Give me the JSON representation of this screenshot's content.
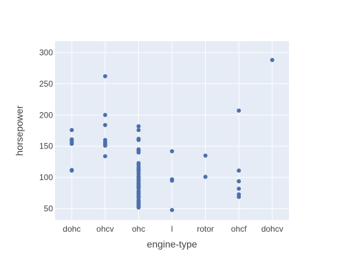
{
  "chart_data": {
    "type": "scatter",
    "xlabel": "engine-type",
    "ylabel": "horsepower",
    "categories": [
      "dohc",
      "ohcv",
      "ohc",
      "l",
      "rotor",
      "ohcf",
      "dohcv"
    ],
    "ylim": [
      32,
      318
    ],
    "yticks": [
      50,
      100,
      150,
      200,
      250,
      300
    ],
    "grid": true,
    "colors": {
      "marker": "#4c6fae",
      "plot_background": "#e5ecf6",
      "grid": "#ffffff",
      "text": "#444444"
    },
    "series": [
      {
        "points": [
          {
            "x": "dohc",
            "y": 111
          },
          {
            "x": "dohc",
            "y": 112
          },
          {
            "x": "dohc",
            "y": 154
          },
          {
            "x": "dohc",
            "y": 157
          },
          {
            "x": "dohc",
            "y": 160
          },
          {
            "x": "dohc",
            "y": 161
          },
          {
            "x": "dohc",
            "y": 176
          },
          {
            "x": "ohcv",
            "y": 134
          },
          {
            "x": "ohcv",
            "y": 151
          },
          {
            "x": "ohcv",
            "y": 152
          },
          {
            "x": "ohcv",
            "y": 155
          },
          {
            "x": "ohcv",
            "y": 156
          },
          {
            "x": "ohcv",
            "y": 160
          },
          {
            "x": "ohcv",
            "y": 184
          },
          {
            "x": "ohcv",
            "y": 200
          },
          {
            "x": "ohcv",
            "y": 262
          },
          {
            "x": "ohc",
            "y": 52
          },
          {
            "x": "ohc",
            "y": 55
          },
          {
            "x": "ohc",
            "y": 56
          },
          {
            "x": "ohc",
            "y": 58
          },
          {
            "x": "ohc",
            "y": 60
          },
          {
            "x": "ohc",
            "y": 62
          },
          {
            "x": "ohc",
            "y": 64
          },
          {
            "x": "ohc",
            "y": 68
          },
          {
            "x": "ohc",
            "y": 69
          },
          {
            "x": "ohc",
            "y": 70
          },
          {
            "x": "ohc",
            "y": 73
          },
          {
            "x": "ohc",
            "y": 76
          },
          {
            "x": "ohc",
            "y": 78
          },
          {
            "x": "ohc",
            "y": 82
          },
          {
            "x": "ohc",
            "y": 84
          },
          {
            "x": "ohc",
            "y": 85
          },
          {
            "x": "ohc",
            "y": 86
          },
          {
            "x": "ohc",
            "y": 88
          },
          {
            "x": "ohc",
            "y": 90
          },
          {
            "x": "ohc",
            "y": 92
          },
          {
            "x": "ohc",
            "y": 95
          },
          {
            "x": "ohc",
            "y": 97
          },
          {
            "x": "ohc",
            "y": 100
          },
          {
            "x": "ohc",
            "y": 101
          },
          {
            "x": "ohc",
            "y": 102
          },
          {
            "x": "ohc",
            "y": 106
          },
          {
            "x": "ohc",
            "y": 110
          },
          {
            "x": "ohc",
            "y": 112
          },
          {
            "x": "ohc",
            "y": 114
          },
          {
            "x": "ohc",
            "y": 116
          },
          {
            "x": "ohc",
            "y": 120
          },
          {
            "x": "ohc",
            "y": 123
          },
          {
            "x": "ohc",
            "y": 140
          },
          {
            "x": "ohc",
            "y": 143
          },
          {
            "x": "ohc",
            "y": 145
          },
          {
            "x": "ohc",
            "y": 160
          },
          {
            "x": "ohc",
            "y": 162
          },
          {
            "x": "ohc",
            "y": 176
          },
          {
            "x": "ohc",
            "y": 182
          },
          {
            "x": "l",
            "y": 48
          },
          {
            "x": "l",
            "y": 95
          },
          {
            "x": "l",
            "y": 97
          },
          {
            "x": "l",
            "y": 142
          },
          {
            "x": "rotor",
            "y": 101
          },
          {
            "x": "rotor",
            "y": 135
          },
          {
            "x": "ohcf",
            "y": 69
          },
          {
            "x": "ohcf",
            "y": 73
          },
          {
            "x": "ohcf",
            "y": 82
          },
          {
            "x": "ohcf",
            "y": 94
          },
          {
            "x": "ohcf",
            "y": 111
          },
          {
            "x": "ohcf",
            "y": 207
          },
          {
            "x": "dohcv",
            "y": 288
          }
        ]
      }
    ]
  }
}
